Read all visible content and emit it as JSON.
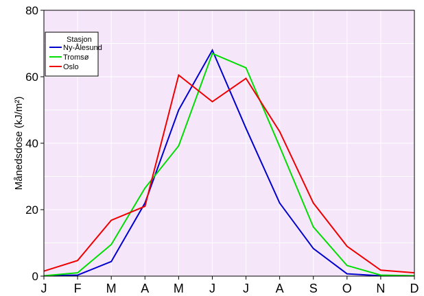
{
  "chart_data": {
    "type": "line",
    "categories": [
      "J",
      "F",
      "M",
      "A",
      "M",
      "J",
      "J",
      "A",
      "S",
      "O",
      "N",
      "D"
    ],
    "ylabel": "Månedsdose (kJ/m²)",
    "ylim": [
      0,
      80
    ],
    "yticks": [
      "0",
      "20",
      "40",
      "60",
      "80"
    ],
    "grid": true,
    "legend": {
      "title": "Stasjon",
      "placement": "top-left"
    },
    "background_color": "#f6e6fa",
    "grid_color": "#ffffff",
    "series": [
      {
        "name": "Ny-Ålesund",
        "color": "#0000cc",
        "values": [
          0.1,
          0.3,
          4.4,
          22.0,
          50.0,
          68.0,
          44.5,
          22.0,
          8.3,
          0.7,
          0.1,
          0.1
        ]
      },
      {
        "name": "Tromsø",
        "color": "#00dd00",
        "values": [
          0.1,
          1.0,
          9.5,
          26.5,
          39.2,
          67.0,
          62.7,
          39.0,
          14.8,
          3.2,
          0.3,
          0.1
        ]
      },
      {
        "name": "Oslo",
        "color": "#ee0000",
        "values": [
          1.5,
          4.7,
          16.8,
          21.0,
          60.5,
          52.5,
          59.5,
          43.5,
          22.0,
          9.0,
          1.8,
          1.0
        ]
      }
    ]
  }
}
